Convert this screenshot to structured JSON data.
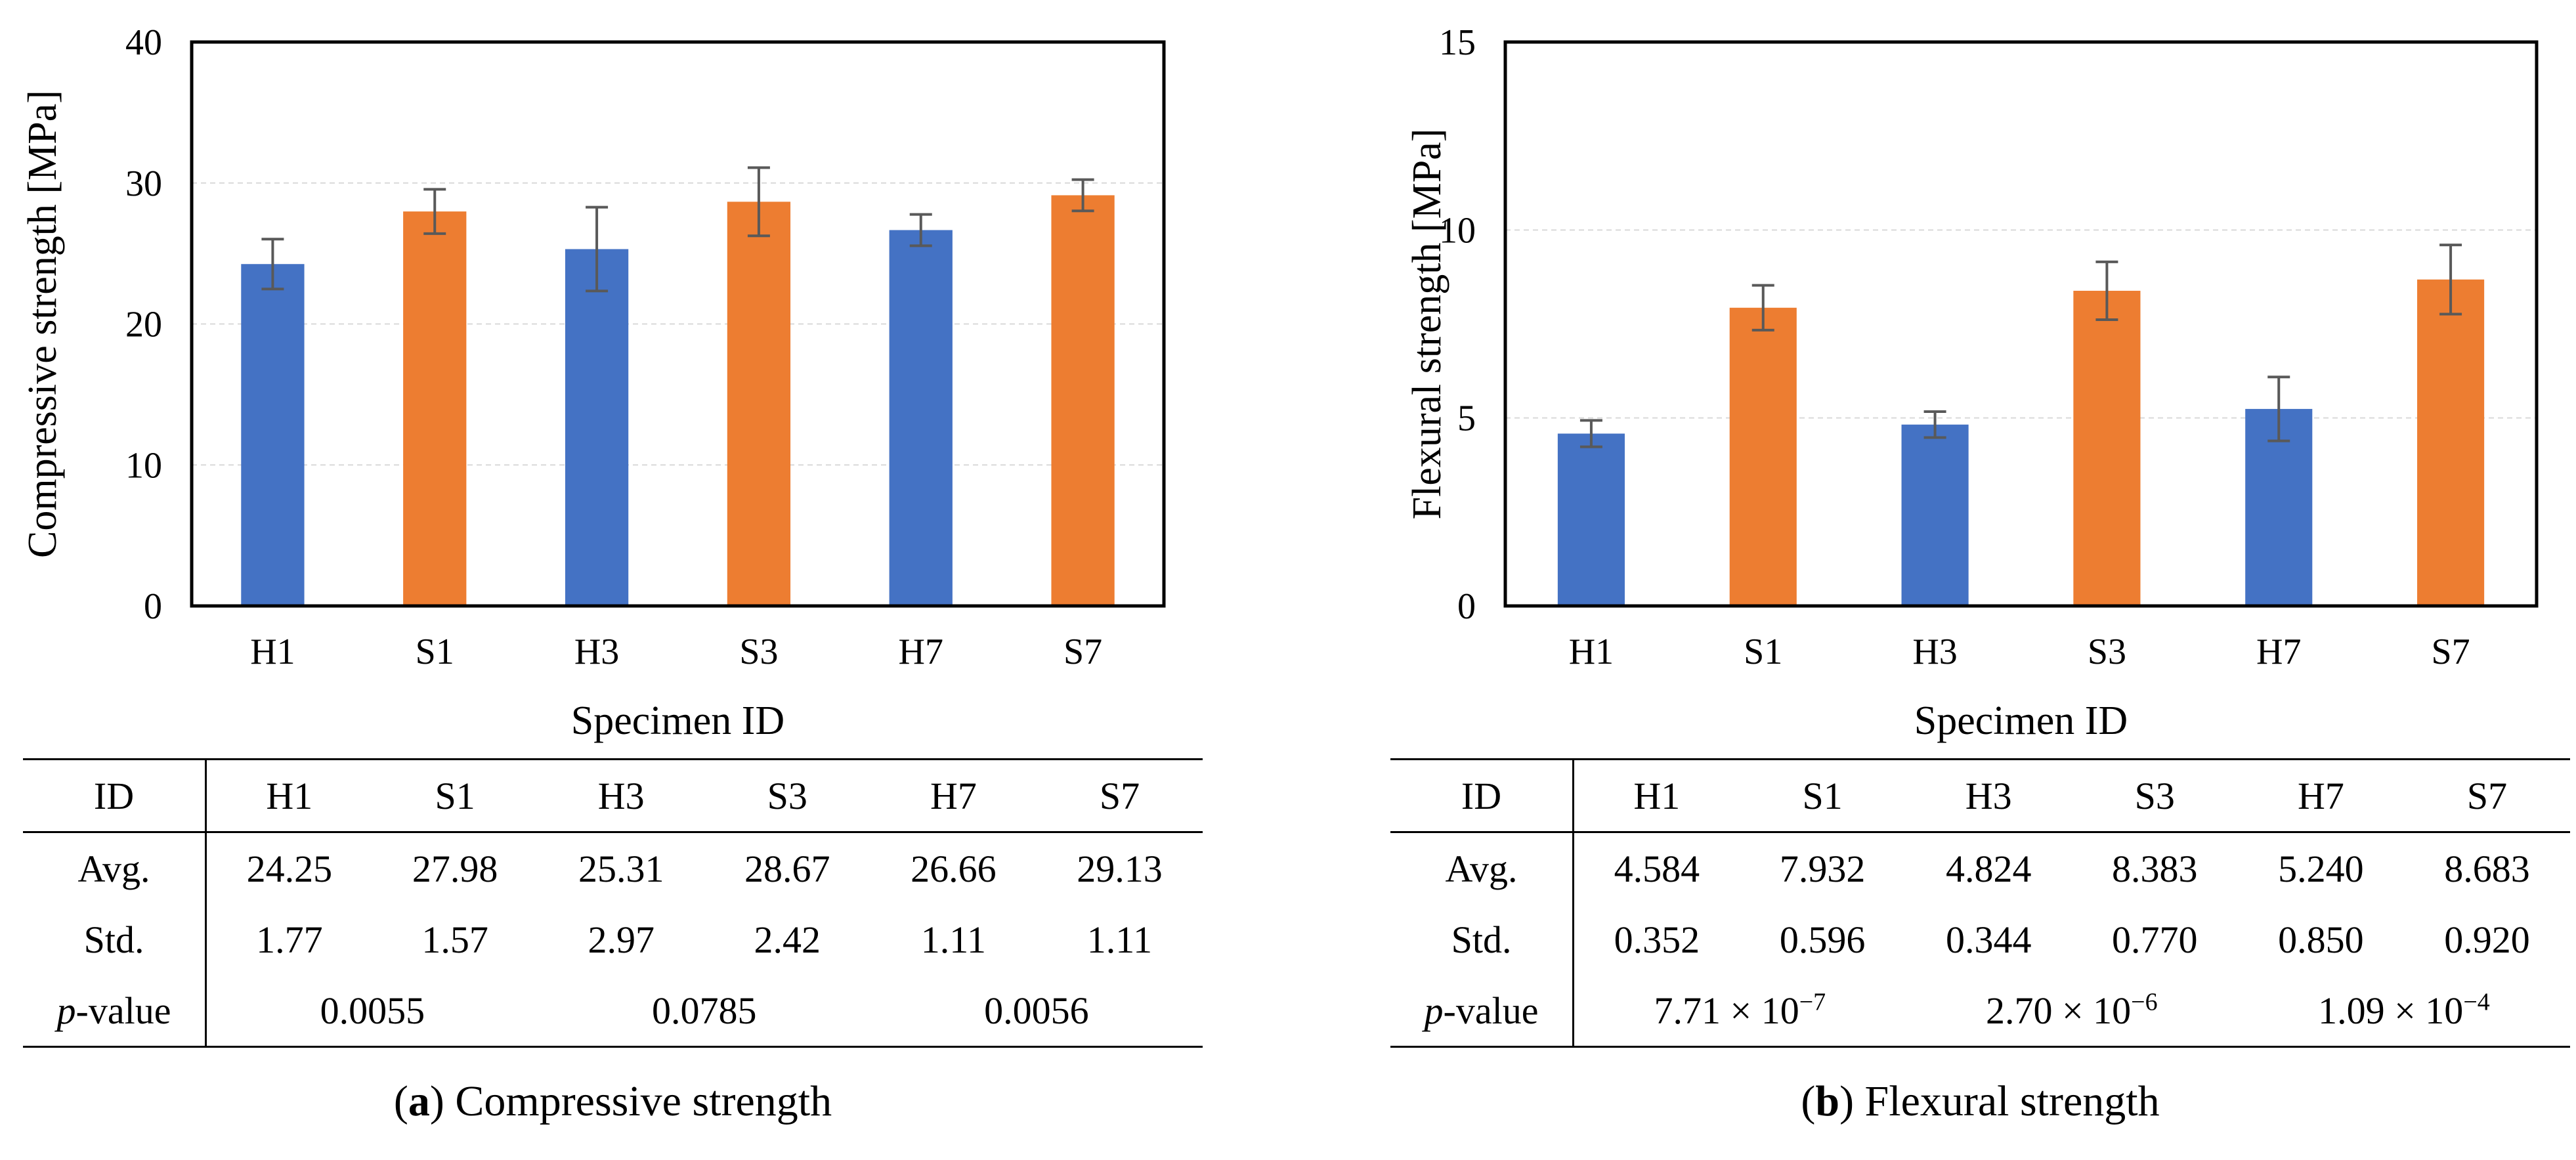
{
  "chart_data": [
    {
      "type": "bar",
      "panel": "a",
      "ylabel": "Compressive strength [MPa]",
      "xlabel": "Specimen ID",
      "categories": [
        "H1",
        "S1",
        "H3",
        "S3",
        "H7",
        "S7"
      ],
      "values": [
        24.25,
        27.98,
        25.31,
        28.67,
        26.66,
        29.13
      ],
      "errors": [
        1.77,
        1.57,
        2.97,
        2.42,
        1.11,
        1.11
      ],
      "ylim": [
        0,
        40
      ],
      "yticks": [
        "0",
        "10",
        "20",
        "30",
        "40"
      ],
      "grid": true,
      "series_colors": [
        "#4472C4",
        "#ED7D31",
        "#4472C4",
        "#ED7D31",
        "#4472C4",
        "#ED7D31"
      ]
    },
    {
      "type": "bar",
      "panel": "b",
      "ylabel": "Flexural strength [MPa]",
      "xlabel": "Specimen ID",
      "categories": [
        "H1",
        "S1",
        "H3",
        "S3",
        "H7",
        "S7"
      ],
      "values": [
        4.584,
        7.932,
        4.824,
        8.383,
        5.24,
        8.683
      ],
      "errors": [
        0.352,
        0.596,
        0.344,
        0.77,
        0.85,
        0.92
      ],
      "ylim": [
        0,
        15
      ],
      "yticks": [
        "0",
        "5",
        "10",
        "15"
      ],
      "grid": true,
      "series_colors": [
        "#4472C4",
        "#ED7D31",
        "#4472C4",
        "#ED7D31",
        "#4472C4",
        "#ED7D31"
      ]
    }
  ],
  "tables": [
    {
      "header": [
        "ID",
        "H1",
        "S1",
        "H3",
        "S3",
        "H7",
        "S7"
      ],
      "avg_label": "Avg.",
      "avg": [
        "24.25",
        "27.98",
        "25.31",
        "28.67",
        "26.66",
        "29.13"
      ],
      "std_label": "Std.",
      "std": [
        "1.77",
        "1.57",
        "2.97",
        "2.42",
        "1.11",
        "1.11"
      ],
      "p_label_italic": "p",
      "p_label_rest": "-value",
      "p_values": [
        {
          "base": "0.0055",
          "exp": ""
        },
        {
          "base": "0.0785",
          "exp": ""
        },
        {
          "base": "0.0056",
          "exp": ""
        }
      ]
    },
    {
      "header": [
        "ID",
        "H1",
        "S1",
        "H3",
        "S3",
        "H7",
        "S7"
      ],
      "avg_label": "Avg.",
      "avg": [
        "4.584",
        "7.932",
        "4.824",
        "8.383",
        "5.240",
        "8.683"
      ],
      "std_label": "Std.",
      "std": [
        "0.352",
        "0.596",
        "0.344",
        "0.770",
        "0.850",
        "0.920"
      ],
      "p_label_italic": "p",
      "p_label_rest": "-value",
      "p_values": [
        {
          "base": "7.71 × 10",
          "exp": "−7"
        },
        {
          "base": "2.70 × 10",
          "exp": "−6"
        },
        {
          "base": "1.09 × 10",
          "exp": "−4"
        }
      ]
    }
  ],
  "captions": [
    {
      "letter": "a",
      "text": " Compressive strength"
    },
    {
      "letter": "b",
      "text": " Flexural strength"
    }
  ]
}
